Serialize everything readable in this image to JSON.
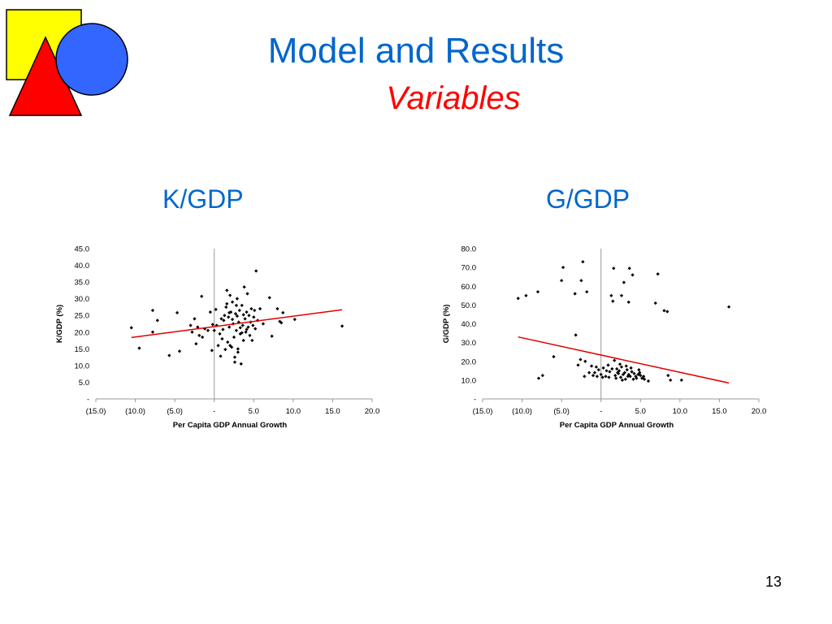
{
  "slide": {
    "title": "Model and Results",
    "subtitle": "Variables",
    "page_number": "13",
    "left_chart_heading": "K/GDP",
    "right_chart_heading": "G/GDP"
  },
  "logo": {
    "square_color": "#ffff00",
    "circle_color": "#3366ff",
    "triangle_color": "#ff0000"
  },
  "chart_data": [
    {
      "type": "scatter",
      "xlabel": "Per Capita GDP Annual Growth",
      "ylabel": "K/GDP (%)",
      "xlim": [
        -15,
        20
      ],
      "ylim": [
        0,
        45
      ],
      "xticks": [
        "(15.0)",
        "(10.0)",
        "(5.0)",
        "-",
        "5.0",
        "10.0",
        "15.0",
        "20.0"
      ],
      "yticks": [
        "-",
        "5.0",
        "10.0",
        "15.0",
        "20.0",
        "25.0",
        "30.0",
        "35.0",
        "40.0",
        "45.0"
      ],
      "trendline": {
        "x": [
          -10.5,
          16.2
        ],
        "y": [
          18.4,
          26.7
        ],
        "color": "#e00000"
      },
      "points": [
        [
          -10.5,
          21.3
        ],
        [
          -9.5,
          15.2
        ],
        [
          -7.8,
          26.5
        ],
        [
          -7.8,
          20.0
        ],
        [
          -7.2,
          23.5
        ],
        [
          -5.7,
          13.0
        ],
        [
          -4.7,
          25.8
        ],
        [
          -4.4,
          14.3
        ],
        [
          -3.0,
          22.0
        ],
        [
          -2.8,
          20.0
        ],
        [
          -2.5,
          24.0
        ],
        [
          -2.3,
          16.5
        ],
        [
          -2.1,
          21.5
        ],
        [
          -1.9,
          19.0
        ],
        [
          -1.6,
          30.7
        ],
        [
          -1.5,
          18.5
        ],
        [
          -1.2,
          21.0
        ],
        [
          -0.8,
          20.5
        ],
        [
          -0.5,
          26.0
        ],
        [
          -0.3,
          14.5
        ],
        [
          0.0,
          20.5
        ],
        [
          0.2,
          26.8
        ],
        [
          0.3,
          22.0
        ],
        [
          0.5,
          16.0
        ],
        [
          0.7,
          19.5
        ],
        [
          0.8,
          12.8
        ],
        [
          1.0,
          18.0
        ],
        [
          1.2,
          23.5
        ],
        [
          1.3,
          25.0
        ],
        [
          1.5,
          27.5
        ],
        [
          1.6,
          32.5
        ],
        [
          1.7,
          17.0
        ],
        [
          1.8,
          24.5
        ],
        [
          1.9,
          21.5
        ],
        [
          2.0,
          31.0
        ],
        [
          2.1,
          26.0
        ],
        [
          2.2,
          15.5
        ],
        [
          2.3,
          29.0
        ],
        [
          2.4,
          22.5
        ],
        [
          2.5,
          18.5
        ],
        [
          2.6,
          11.0
        ],
        [
          2.7,
          25.5
        ],
        [
          2.8,
          20.5
        ],
        [
          2.9,
          30.0
        ],
        [
          3.0,
          14.0
        ],
        [
          3.1,
          23.0
        ],
        [
          3.2,
          26.5
        ],
        [
          3.3,
          19.5
        ],
        [
          3.4,
          10.5
        ],
        [
          3.5,
          28.0
        ],
        [
          3.6,
          22.0
        ],
        [
          3.7,
          17.5
        ],
        [
          3.8,
          33.5
        ],
        [
          3.9,
          24.0
        ],
        [
          4.0,
          20.0
        ],
        [
          4.1,
          26.0
        ],
        [
          4.2,
          31.5
        ],
        [
          4.3,
          21.5
        ],
        [
          4.4,
          25.0
        ],
        [
          4.5,
          19.0
        ],
        [
          4.6,
          23.0
        ],
        [
          4.7,
          27.0
        ],
        [
          4.8,
          17.5
        ],
        [
          4.9,
          22.0
        ],
        [
          5.0,
          24.5
        ],
        [
          5.1,
          26.5
        ],
        [
          5.2,
          21.0
        ],
        [
          5.3,
          38.3
        ],
        [
          5.5,
          23.5
        ],
        [
          5.8,
          27.0
        ],
        [
          6.2,
          22.5
        ],
        [
          7.0,
          30.3
        ],
        [
          7.3,
          18.8
        ],
        [
          8.0,
          27.0
        ],
        [
          8.3,
          23.2
        ],
        [
          8.7,
          25.8
        ],
        [
          8.5,
          22.8
        ],
        [
          10.2,
          23.8
        ],
        [
          16.2,
          21.8
        ],
        [
          1.4,
          14.8
        ],
        [
          2.0,
          16.0
        ],
        [
          2.6,
          12.5
        ],
        [
          3.0,
          15.0
        ],
        [
          1.9,
          25.8
        ],
        [
          2.8,
          28.0
        ],
        [
          3.5,
          19.8
        ],
        [
          1.1,
          20.8
        ],
        [
          2.3,
          23.8
        ],
        [
          2.9,
          24.8
        ],
        [
          3.7,
          25.2
        ],
        [
          4.1,
          20.8
        ],
        [
          -0.2,
          22.3
        ],
        [
          0.9,
          24.0
        ],
        [
          1.6,
          28.5
        ],
        [
          3.3,
          21.3
        ]
      ]
    },
    {
      "type": "scatter",
      "xlabel": "Per Capita GDP Annual Growth",
      "ylabel": "G/GDP (%)",
      "xlim": [
        -15,
        20
      ],
      "ylim": [
        0,
        80
      ],
      "xticks": [
        "(15.0)",
        "(10.0)",
        "(5.0)",
        "-",
        "5.0",
        "10.0",
        "15.0",
        "20.0"
      ],
      "yticks": [
        "-",
        "10.0",
        "20.0",
        "30.0",
        "40.0",
        "50.0",
        "60.0",
        "70.0",
        "80.0"
      ],
      "trendline": {
        "x": [
          -10.5,
          16.2
        ],
        "y": [
          33.0,
          8.5
        ],
        "color": "#e00000"
      },
      "points": [
        [
          -10.5,
          53.5
        ],
        [
          -9.5,
          55.0
        ],
        [
          -8.0,
          57.0
        ],
        [
          -7.9,
          11.0
        ],
        [
          -7.4,
          12.5
        ],
        [
          -6.0,
          22.5
        ],
        [
          -4.8,
          70.0
        ],
        [
          -5.0,
          63.0
        ],
        [
          -3.3,
          56.0
        ],
        [
          -3.2,
          34.0
        ],
        [
          -2.9,
          18.0
        ],
        [
          -2.6,
          21.0
        ],
        [
          -2.5,
          63.0
        ],
        [
          -2.3,
          73.0
        ],
        [
          -2.1,
          12.0
        ],
        [
          -2.0,
          20.0
        ],
        [
          -1.8,
          57.0
        ],
        [
          -1.5,
          14.0
        ],
        [
          -1.0,
          12.5
        ],
        [
          -0.6,
          17.0
        ],
        [
          -0.3,
          15.5
        ],
        [
          0.0,
          13.0
        ],
        [
          0.3,
          16.5
        ],
        [
          0.6,
          12.0
        ],
        [
          0.9,
          18.0
        ],
        [
          1.1,
          14.5
        ],
        [
          1.3,
          55.0
        ],
        [
          1.5,
          52.0
        ],
        [
          1.6,
          69.5
        ],
        [
          1.7,
          20.5
        ],
        [
          1.9,
          11.0
        ],
        [
          2.0,
          16.0
        ],
        [
          2.2,
          13.5
        ],
        [
          2.4,
          18.5
        ],
        [
          2.6,
          55.0
        ],
        [
          2.7,
          10.0
        ],
        [
          2.9,
          62.0
        ],
        [
          3.0,
          14.0
        ],
        [
          3.2,
          17.5
        ],
        [
          3.4,
          12.0
        ],
        [
          3.5,
          51.5
        ],
        [
          3.6,
          69.5
        ],
        [
          3.8,
          16.5
        ],
        [
          4.0,
          66.0
        ],
        [
          4.2,
          13.5
        ],
        [
          4.5,
          11.0
        ],
        [
          4.8,
          15.5
        ],
        [
          5.0,
          12.5
        ],
        [
          5.5,
          10.5
        ],
        [
          6.0,
          9.5
        ],
        [
          6.9,
          51.0
        ],
        [
          7.2,
          66.5
        ],
        [
          8.0,
          47.0
        ],
        [
          8.4,
          46.5
        ],
        [
          8.5,
          12.5
        ],
        [
          8.8,
          10.0
        ],
        [
          10.2,
          10.0
        ],
        [
          16.2,
          49.0
        ],
        [
          1.0,
          11.5
        ],
        [
          1.8,
          12.5
        ],
        [
          2.3,
          15.0
        ],
        [
          2.5,
          11.5
        ],
        [
          2.8,
          13.0
        ],
        [
          3.1,
          10.5
        ],
        [
          3.3,
          15.5
        ],
        [
          3.7,
          12.0
        ],
        [
          3.9,
          14.5
        ],
        [
          4.4,
          12.0
        ],
        [
          4.7,
          13.0
        ],
        [
          5.2,
          11.0
        ],
        [
          0.7,
          15.0
        ],
        [
          0.2,
          11.5
        ],
        [
          -0.8,
          14.0
        ],
        [
          1.4,
          16.0
        ],
        [
          2.1,
          14.0
        ],
        [
          2.6,
          17.0
        ],
        [
          3.5,
          13.0
        ],
        [
          4.1,
          10.5
        ],
        [
          4.9,
          14.0
        ],
        [
          5.4,
          12.0
        ],
        [
          -1.2,
          17.5
        ],
        [
          -0.5,
          12.0
        ]
      ]
    }
  ]
}
